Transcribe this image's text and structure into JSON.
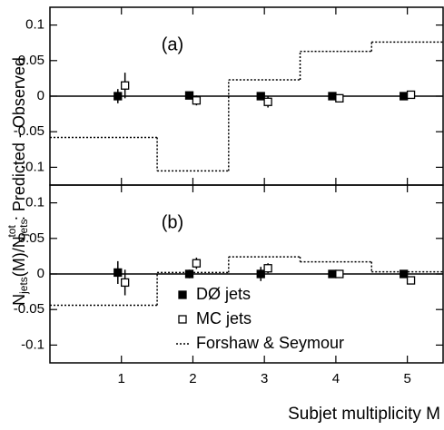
{
  "ylabel": [
    "N",
    "jets",
    "(M)/N",
    "jets",
    "tot",
    " : Predicted - Observed"
  ],
  "xlabel": "Subjet multiplicity M",
  "chart_data": [
    {
      "type": "scatter",
      "label": "(a)",
      "xlim": [
        0,
        5.5
      ],
      "xticks": [
        1,
        2,
        3,
        4,
        5
      ],
      "ylim": [
        -0.125,
        0.125
      ],
      "yticks": [
        -0.1,
        -0.05,
        0,
        0.05,
        0.1
      ],
      "legend": false,
      "series": [
        {
          "marker": "filled",
          "color": "#000000",
          "x": [
            0.95,
            1.95,
            2.95,
            3.95,
            4.95
          ],
          "values": [
            0,
            0.001,
            0,
            0,
            0
          ],
          "errors": [
            0.01,
            0.004,
            0.004,
            0.003,
            0.003
          ]
        },
        {
          "marker": "open",
          "color": "#000000",
          "x": [
            1.05,
            2.05,
            3.05,
            4.05,
            5.05
          ],
          "values": [
            0.015,
            -0.006,
            -0.008,
            -0.003,
            0.002
          ],
          "errors": [
            0.018,
            0.007,
            0.008,
            0.004,
            0.003
          ]
        },
        {
          "marker": "step",
          "color": "#000000",
          "bins": [
            0,
            1.5,
            2.5,
            3.5,
            4.5,
            5.5
          ],
          "values": [
            -0.058,
            -0.105,
            0.023,
            0.063,
            0.076
          ]
        }
      ]
    },
    {
      "type": "scatter",
      "label": "(b)",
      "xlim": [
        0,
        5.5
      ],
      "xticks": [
        1,
        2,
        3,
        4,
        5
      ],
      "ylim": [
        -0.125,
        0.125
      ],
      "yticks": [
        -0.1,
        -0.05,
        0,
        0.05,
        0.1
      ],
      "legend": true,
      "series": [
        {
          "name": "DØ jets",
          "marker": "filled",
          "color": "#000000",
          "x": [
            0.95,
            1.95,
            2.95,
            3.95,
            4.95
          ],
          "values": [
            0.002,
            0,
            0,
            0,
            0
          ],
          "errors": [
            0.016,
            0.006,
            0.01,
            0.003,
            0.003
          ]
        },
        {
          "name": "MC jets",
          "marker": "open",
          "color": "#000000",
          "x": [
            1.05,
            2.05,
            3.05,
            4.05,
            5.05
          ],
          "values": [
            -0.012,
            0.015,
            0.008,
            0,
            -0.009
          ],
          "errors": [
            0.018,
            0.008,
            0.007,
            0.003,
            0.003
          ]
        },
        {
          "name": "Forshaw & Seymour",
          "marker": "step",
          "color": "#000000",
          "bins": [
            0,
            1.5,
            2.5,
            3.5,
            4.5,
            5.5
          ],
          "values": [
            -0.044,
            0.002,
            0.024,
            0.017,
            0.003
          ]
        }
      ]
    }
  ]
}
